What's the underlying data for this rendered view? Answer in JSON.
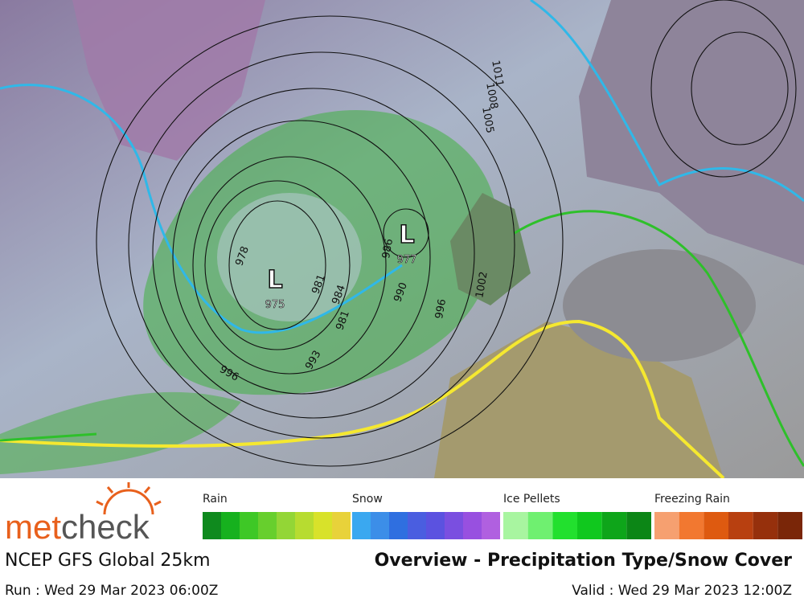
{
  "logo": {
    "part1": "met",
    "part2": "check"
  },
  "model": "NCEP GFS Global 25km",
  "title": "Overview - Precipitation Type/Snow Cover",
  "run": "Run : Wed 29 Mar 2023 06:00Z",
  "valid": "Valid : Wed 29 Mar 2023 12:00Z",
  "legend": [
    {
      "name": "Rain",
      "colors": [
        "#0f8a1e",
        "#16b11e",
        "#3ec826",
        "#67cf2d",
        "#93d636",
        "#b7dc30",
        "#d8e22a",
        "#e8d23a"
      ]
    },
    {
      "name": "Snow",
      "colors": [
        "#3aa8f0",
        "#3c8ee8",
        "#2f6fe0",
        "#4a5ee0",
        "#5b52e0",
        "#7a4fe0",
        "#9850e0",
        "#b060e0"
      ]
    },
    {
      "name": "Ice Pellets",
      "colors": [
        "#a8f5a0",
        "#6ff070",
        "#22e02e",
        "#10c81e",
        "#0ea51a",
        "#0c8616"
      ]
    },
    {
      "name": "Freezing Rain",
      "colors": [
        "#f6a070",
        "#f27830",
        "#de5a10",
        "#b84010",
        "#96300c",
        "#7a2608"
      ]
    }
  ],
  "lows": [
    {
      "symbol": "L",
      "pressure": "975"
    },
    {
      "symbol": "L",
      "pressure": "977"
    }
  ],
  "isobar_labels": [
    "978",
    "981",
    "984",
    "981",
    "993",
    "996",
    "990",
    "996",
    "986",
    "1002",
    "1005",
    "1008",
    "1011"
  ]
}
